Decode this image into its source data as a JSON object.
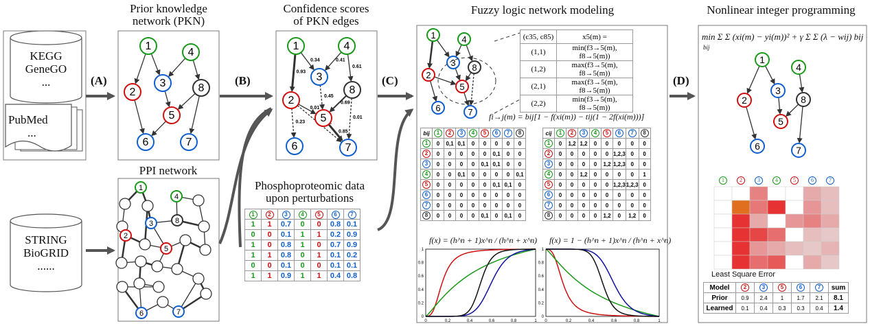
{
  "titles": {
    "pkn": [
      "Prior knowledge",
      "network (PKN)"
    ],
    "conf": [
      "Confidence scores",
      "of PKN edges"
    ],
    "fuzzy": "Fuzzy logic network modeling",
    "nip": "Nonlinear integer programming",
    "ppi": "PPI network",
    "phospho": [
      "Phosphoproteomic data",
      "upon perturbations"
    ]
  },
  "databases": {
    "db1": [
      "KEGG",
      "GeneGO",
      "..."
    ],
    "db2": [
      "PubMed",
      "..."
    ],
    "db3": [
      "STRING",
      "BioGRID",
      "......"
    ]
  },
  "steps": [
    "(A)",
    "(B)",
    "(C)",
    "(D)"
  ],
  "nodes": [
    "1",
    "2",
    "3",
    "4",
    "5",
    "6",
    "7",
    "8"
  ],
  "node_colors": {
    "1": "#1a9a1a",
    "4": "#1a9a1a",
    "2": "#d01010",
    "5": "#d01010",
    "3": "#1060d0",
    "6": "#1060d0",
    "7": "#1060d0",
    "8": "#333333"
  },
  "edge_scores": [
    "0.34",
    "0.41",
    "0.93",
    "0.61",
    "0.45",
    "0.01",
    "0.69",
    "0.23",
    "0.52",
    "0.85",
    "0.01"
  ],
  "rule_table": {
    "header": [
      "(c35, c85)",
      "x5(m) ="
    ],
    "rows": [
      [
        "(1,1)",
        "min(f3→5(m), f8→5(m))"
      ],
      [
        "(1,2)",
        "max(f3→5(m), f8→5(m))"
      ],
      [
        "(2,1)",
        "max(f3→5(m), f8→5(m))"
      ],
      [
        "(2,2)",
        "min(f3→5(m), f8→5(m))"
      ]
    ]
  },
  "transfer_formula": "fi→j(m) = bij[1 − f(xi(m)) − tij(1 − 2f(xi(m)))]",
  "bmatrix": {
    "label": "bij",
    "rows": [
      [
        "0",
        "0,1",
        "0,1",
        "0",
        "0",
        "0",
        "0",
        "0"
      ],
      [
        "0",
        "0",
        "0",
        "0",
        "0",
        "0,1",
        "0",
        "0"
      ],
      [
        "0",
        "0",
        "0",
        "0",
        "0,1",
        "0,1",
        "0",
        "0"
      ],
      [
        "0",
        "0",
        "0,1",
        "0",
        "0",
        "0",
        "0",
        "0,1"
      ],
      [
        "0",
        "0",
        "0",
        "0",
        "0",
        "0,1",
        "0,1",
        "0"
      ],
      [
        "0",
        "0",
        "0",
        "0",
        "0",
        "0",
        "0",
        "0"
      ],
      [
        "0",
        "0",
        "0",
        "0",
        "0",
        "0",
        "0",
        "0"
      ],
      [
        "0",
        "0",
        "0",
        "0",
        "0,1",
        "0",
        "0,1",
        "0"
      ]
    ]
  },
  "cmatrix": {
    "label": "cij",
    "rows": [
      [
        "0",
        "1,2",
        "1,2",
        "0",
        "0",
        "0",
        "0",
        "0"
      ],
      [
        "0",
        "0",
        "0",
        "0",
        "0",
        "1,2,3",
        "0",
        "0"
      ],
      [
        "0",
        "0",
        "0",
        "0",
        "1,2",
        "1,2,3",
        "0",
        "0"
      ],
      [
        "0",
        "0",
        "1,2",
        "0",
        "0",
        "0",
        "0",
        "1"
      ],
      [
        "0",
        "0",
        "0",
        "0",
        "0",
        "1,2,3",
        "1,2,3",
        "0"
      ],
      [
        "0",
        "0",
        "0",
        "0",
        "0",
        "0",
        "0",
        "0"
      ],
      [
        "0",
        "0",
        "0",
        "0",
        "0",
        "0",
        "0",
        "0"
      ],
      [
        "0",
        "0",
        "0",
        "0",
        "1,2",
        "0",
        "1,2",
        "0"
      ]
    ]
  },
  "phospho_table": {
    "header": [
      "1",
      "2",
      "3",
      "4",
      "5",
      "6",
      "7"
    ],
    "rows": [
      [
        "1",
        "1",
        "0.7",
        "0",
        "0",
        "0.8",
        "0.1"
      ],
      [
        "0",
        "0",
        "0.1",
        "1",
        "1",
        "0.2",
        "0.9"
      ],
      [
        "1",
        "0",
        "0.8",
        "1",
        "0",
        "0.7",
        "0.9"
      ],
      [
        "1",
        "1",
        "0.8",
        "0",
        "1",
        "0.1",
        "0.2"
      ],
      [
        "0",
        "0",
        "0.1",
        "0",
        "0",
        "0.1",
        "0.1"
      ],
      [
        "1",
        "1",
        "0.9",
        "1",
        "1",
        "0.4",
        "0.8"
      ]
    ]
  },
  "hill_formula_1": "f(x) = (h^n + 1)x^n / (h^n + x^n)",
  "hill_formula_2": "f(x) = 1 − (h^n + 1)x^n / (h^n + x^n)",
  "plot_ticks_x": [
    "0",
    "0.2",
    "0.4",
    "0.6",
    "0.8",
    "1"
  ],
  "plot_ticks_y": [
    "0",
    "0.2",
    "0.4",
    "0.6",
    "0.8",
    "1"
  ],
  "objective": "min Σ Σ (xi(m) − yi(m))² + γ Σ Σ (λ − wij) bij",
  "objective_sub": "bij",
  "heatmap_header": [
    "1",
    "2",
    "3",
    "4",
    "5",
    "6",
    "7"
  ],
  "lse": {
    "caption": "Least Square Error",
    "header": [
      "Model",
      "2",
      "3",
      "5",
      "6",
      "7",
      "sum"
    ],
    "rows": [
      [
        "Prior",
        "0.9",
        "2.4",
        "1",
        "1.7",
        "2.1",
        "8.1"
      ],
      [
        "Learned",
        "0.1",
        "0.4",
        "0.3",
        "0.3",
        "0.4",
        "1.4"
      ]
    ]
  },
  "colors": {
    "green": "#1a9a1a",
    "red": "#d01010",
    "blue": "#1060d0",
    "black": "#111111"
  }
}
